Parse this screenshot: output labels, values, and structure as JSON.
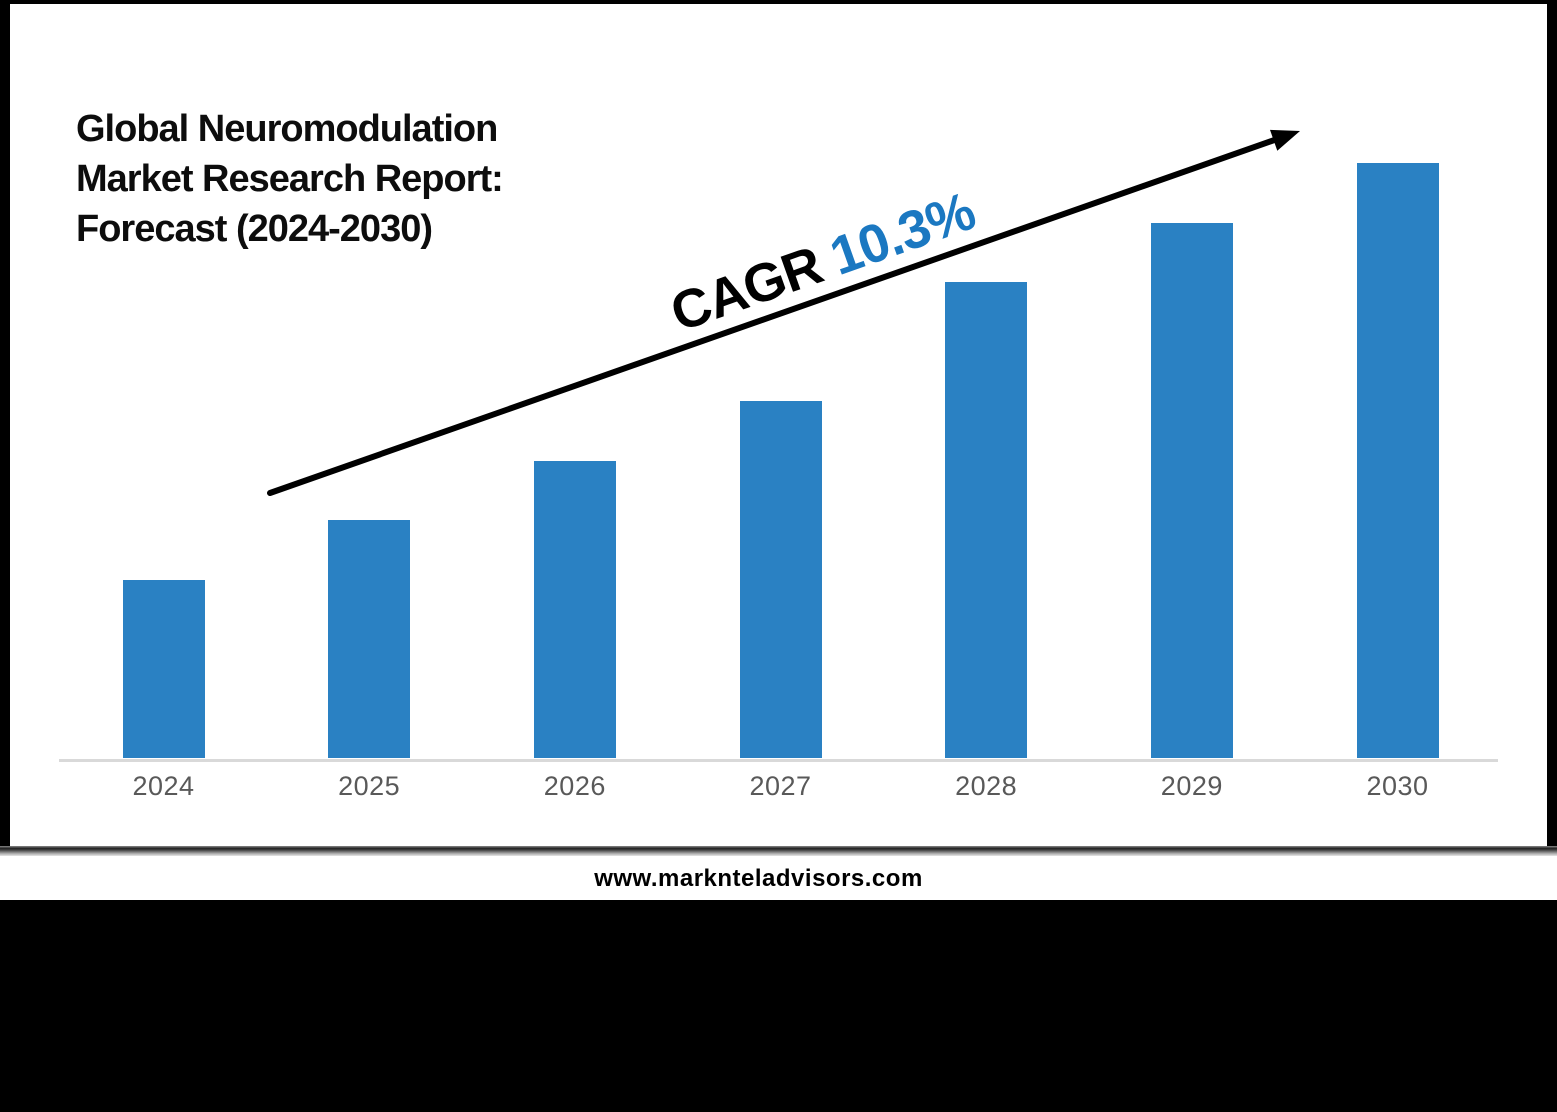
{
  "title": {
    "lines": [
      "Global Neuromodulation",
      "Market Research Report:",
      "Forecast (2024-2030)"
    ]
  },
  "annotation": {
    "label": "CAGR",
    "value": "10.3%"
  },
  "footer": {
    "website": "www.marknteladvisors.com"
  },
  "colors": {
    "bar_blue": "#2a81c3",
    "annotation_blue": "#1b78c1",
    "arrow_black": "#000000",
    "axis_line_gray": "#d9d9d9",
    "tick_label_gray": "#595959",
    "frame_black": "#000000",
    "panel_white": "#ffffff"
  },
  "chart_data": {
    "type": "bar",
    "title": "Global Neuromodulation Market Research Report: Forecast (2024-2030)",
    "categories": [
      "2024",
      "2025",
      "2026",
      "2027",
      "2028",
      "2029",
      "2030"
    ],
    "values": [
      30,
      40,
      50,
      60,
      80,
      90,
      100
    ],
    "values_note": "relative bar heights; no y-axis values shown in image, tallest bar (2030) = 100",
    "annotation": "CAGR 10.3%",
    "xlabel": "",
    "ylabel": "",
    "ylim": [
      0,
      100
    ],
    "grid": false,
    "legend": false,
    "bar_color": "#2a81c3"
  }
}
